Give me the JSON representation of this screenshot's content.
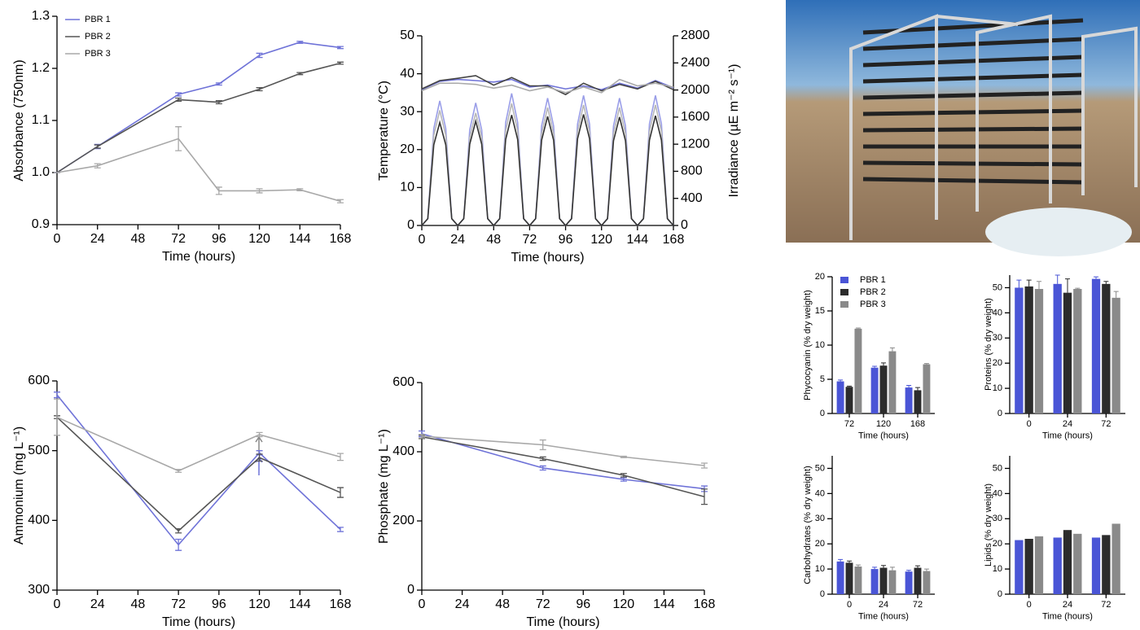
{
  "chart_data": [
    {
      "type": "line",
      "xlabel": "Time (hours)",
      "ylabel": "Absorbance (750nm)",
      "legend": "upper left",
      "x": [
        0,
        24,
        72,
        96,
        120,
        144,
        168
      ],
      "xlim": [
        0,
        168
      ],
      "xticks": [
        0,
        24,
        48,
        72,
        96,
        120,
        144,
        168
      ],
      "ylim": [
        0.9,
        1.3
      ],
      "yticks": [
        0.9,
        {
          "value": 1,
          "label": "1.0"
        },
        1.1,
        1.2,
        1.3
      ],
      "series": [
        {
          "name": "PBR 1",
          "color": "#6f73d8",
          "values": [
            1.0,
            1.05,
            1.15,
            1.17,
            1.225,
            1.25,
            1.24
          ],
          "errors": [
            0,
            0.004,
            0.003,
            0.002,
            0.004,
            0.002,
            0.002
          ]
        },
        {
          "name": "PBR 2",
          "color": "#555555",
          "values": [
            1.0,
            1.05,
            1.14,
            1.135,
            1.16,
            1.19,
            1.21
          ],
          "errors": [
            0,
            0.003,
            0.003,
            0.003,
            0.003,
            0.002,
            0.002
          ]
        },
        {
          "name": "PBR 3",
          "color": "#a8a8a8",
          "values": [
            1.0,
            1.013,
            1.065,
            0.965,
            0.965,
            0.967,
            0.945
          ],
          "errors": [
            0,
            0.004,
            0.023,
            0.007,
            0.004,
            0.002,
            0.003
          ]
        }
      ]
    },
    {
      "type": "line",
      "xlabel": "Time (hours)",
      "ylabel": "Temperature (°C)",
      "y2label": "Irradiance (µE m⁻² s⁻¹)",
      "x": [
        0,
        4,
        8,
        12,
        16,
        20,
        24,
        28,
        32,
        36,
        40,
        44,
        48,
        52,
        56,
        60,
        64,
        68,
        72,
        76,
        80,
        84,
        88,
        92,
        96,
        100,
        104,
        108,
        112,
        116,
        120,
        124,
        128,
        132,
        136,
        140,
        144,
        148,
        152,
        156,
        160,
        164,
        168
      ],
      "xlim": [
        0,
        168
      ],
      "xticks": [
        0,
        24,
        48,
        72,
        96,
        120,
        144,
        168
      ],
      "ylim": [
        0,
        50
      ],
      "yticks": [
        0,
        10,
        20,
        30,
        40,
        50
      ],
      "y2lim": [
        0,
        2800
      ],
      "y2ticks": [
        0,
        400,
        800,
        1200,
        1600,
        2000,
        2400,
        2800
      ],
      "series": [
        {
          "color": "#6f73d8",
          "x": [
            0,
            12,
            24,
            36,
            48,
            60,
            72,
            84,
            96,
            108,
            120,
            132,
            144,
            156,
            168
          ],
          "values": [
            35.8,
            38,
            38.5,
            38.2,
            37.8,
            38.5,
            36.5,
            37,
            36,
            36.8,
            35.8,
            37.5,
            36.2,
            38.2,
            36.3
          ]
        },
        {
          "color": "#444444",
          "x": [
            0,
            12,
            24,
            36,
            48,
            60,
            72,
            84,
            96,
            108,
            120,
            132,
            144,
            156,
            168
          ],
          "values": [
            36,
            38.2,
            38.8,
            39.5,
            37,
            39,
            36.8,
            36.8,
            34.5,
            37.5,
            35.5,
            37.2,
            36,
            38,
            35.8
          ]
        },
        {
          "color": "#aaaaaa",
          "x": [
            0,
            12,
            24,
            36,
            48,
            60,
            72,
            84,
            96,
            108,
            120,
            132,
            144,
            156,
            168
          ],
          "values": [
            35.5,
            37.5,
            37.5,
            37.2,
            36.2,
            37,
            35.5,
            36.5,
            35,
            36.5,
            35,
            38.5,
            36.8,
            37.5,
            36.5
          ]
        },
        {
          "color": "#9a9ee8",
          "axis": "y2",
          "values": [
            0,
            100,
            1430,
            1840,
            1430,
            100,
            0,
            100,
            1410,
            1810,
            1410,
            100,
            0,
            100,
            1520,
            1950,
            1520,
            100,
            0,
            100,
            1470,
            1880,
            1470,
            100,
            0,
            100,
            1500,
            1920,
            1500,
            100,
            0,
            100,
            1470,
            1880,
            1470,
            100,
            0,
            100,
            1500,
            1920,
            1500,
            100,
            0
          ]
        },
        {
          "color": "#b8b8b8",
          "axis": "y2",
          "values": [
            0,
            100,
            1330,
            1700,
            1330,
            100,
            0,
            100,
            1300,
            1660,
            1300,
            100,
            0,
            100,
            1400,
            1800,
            1400,
            100,
            0,
            100,
            1360,
            1740,
            1360,
            100,
            0,
            100,
            1390,
            1780,
            1390,
            100,
            0,
            100,
            1360,
            1740,
            1360,
            100,
            0,
            100,
            1390,
            1780,
            1390,
            100,
            0
          ]
        },
        {
          "color": "#333333",
          "axis": "y2",
          "values": [
            0,
            100,
            1190,
            1520,
            1190,
            100,
            0,
            100,
            1200,
            1540,
            1200,
            100,
            0,
            100,
            1270,
            1630,
            1270,
            100,
            0,
            100,
            1260,
            1610,
            1260,
            100,
            0,
            100,
            1280,
            1640,
            1280,
            100,
            0,
            100,
            1250,
            1600,
            1250,
            100,
            0,
            100,
            1260,
            1620,
            1260,
            100,
            0
          ]
        }
      ]
    },
    {
      "type": "line",
      "xlabel": "Time (hours)",
      "ylabel": "Ammonium (mg L⁻¹)",
      "x": [
        0,
        72,
        120,
        168
      ],
      "xlim": [
        0,
        168
      ],
      "xticks": [
        0,
        24,
        48,
        72,
        96,
        120,
        144,
        168
      ],
      "ylim": [
        300,
        600
      ],
      "yticks": [
        300,
        400,
        500,
        600
      ],
      "series": [
        {
          "color": "#6f73d8",
          "values": [
            580,
            365,
            497,
            387
          ],
          "errors": [
            4,
            8,
            3,
            3
          ]
        },
        {
          "color": "#555555",
          "values": [
            548,
            385,
            490,
            440
          ],
          "errors": [
            2,
            3,
            5,
            7
          ]
        },
        {
          "color": "#a8a8a8",
          "values": [
            548,
            471,
            523,
            491
          ],
          "errors": [
            26,
            2,
            3,
            5
          ]
        }
      ]
    },
    {
      "type": "line",
      "xlabel": "Time (hours)",
      "ylabel": "Phosphate (mg L⁻¹)",
      "x": [
        0,
        72,
        120,
        168
      ],
      "xlim": [
        0,
        168
      ],
      "xticks": [
        0,
        24,
        48,
        72,
        96,
        120,
        144,
        168
      ],
      "ylim": [
        0,
        600
      ],
      "yticks": [
        0,
        200,
        400,
        600
      ],
      "series": [
        {
          "color": "#6f73d8",
          "values": [
            452,
            353,
            320,
            293
          ],
          "errors": [
            8,
            6,
            5,
            8
          ]
        },
        {
          "color": "#555555",
          "values": [
            443,
            380,
            332,
            270
          ],
          "errors": [
            5,
            5,
            5,
            22
          ]
        },
        {
          "color": "#a8a8a8",
          "values": [
            445,
            420,
            385,
            360
          ],
          "errors": [
            5,
            14,
            2,
            7
          ]
        }
      ]
    },
    {
      "type": "bar",
      "xlabel": "Time (hours)",
      "ylabel": "Phycocyanin (% dry weight)",
      "legend": "upper left",
      "categories": [
        "72",
        "120",
        "168"
      ],
      "ylim": [
        0,
        20
      ],
      "yticks": [
        0,
        5,
        10,
        15,
        20
      ],
      "series": [
        {
          "name": "PBR 1",
          "color": "#4a55d6",
          "values": [
            4.7,
            6.7,
            3.8
          ],
          "errors": [
            0.2,
            0.2,
            0.3
          ]
        },
        {
          "name": "PBR 2",
          "color": "#2c2c2c",
          "values": [
            3.9,
            7,
            3.4
          ],
          "errors": [
            0.1,
            0.4,
            0.4
          ]
        },
        {
          "name": "PBR 3",
          "color": "#8a8a8a",
          "values": [
            12.4,
            9.1,
            7.2
          ],
          "errors": [
            0.1,
            0.5,
            0.1
          ]
        }
      ]
    },
    {
      "type": "bar",
      "xlabel": "Time (hours)",
      "ylabel": "Proteins (% dry weight)",
      "categories": [
        "0",
        "24",
        "72"
      ],
      "ylim": [
        0,
        55
      ],
      "yticks": [
        0,
        10,
        20,
        30,
        40,
        50
      ],
      "series": [
        {
          "color": "#4a55d6",
          "values": [
            50,
            51.5,
            53.5
          ],
          "errors": [
            3,
            3.5,
            0.8
          ]
        },
        {
          "color": "#2c2c2c",
          "values": [
            50.5,
            48,
            51.5
          ],
          "errors": [
            2.5,
            5.5,
            1
          ]
        },
        {
          "color": "#8a8a8a",
          "values": [
            49.5,
            49.5,
            46
          ],
          "errors": [
            3,
            0.3,
            2.5
          ]
        }
      ]
    },
    {
      "type": "bar",
      "xlabel": "Time (hours)",
      "ylabel": "Carbohydrates (% dry weight)",
      "categories": [
        "0",
        "24",
        "72"
      ],
      "ylim": [
        0,
        55
      ],
      "yticks": [
        0,
        10,
        20,
        30,
        40,
        50
      ],
      "series": [
        {
          "color": "#4a55d6",
          "values": [
            13,
            10,
            9
          ],
          "errors": [
            0.8,
            0.7,
            0.5
          ]
        },
        {
          "color": "#2c2c2c",
          "values": [
            12.5,
            10.5,
            10.5
          ],
          "errors": [
            0.7,
            0.9,
            0.8
          ]
        },
        {
          "color": "#8a8a8a",
          "values": [
            11,
            9.5,
            9.2
          ],
          "errors": [
            0.6,
            1.2,
            0.8
          ]
        }
      ]
    },
    {
      "type": "bar",
      "xlabel": "Time (hours)",
      "ylabel": "Lipids (% dry weight)",
      "categories": [
        "0",
        "24",
        "72"
      ],
      "ylim": [
        0,
        55
      ],
      "yticks": [
        0,
        10,
        20,
        30,
        40,
        50
      ],
      "series": [
        {
          "color": "#4a55d6",
          "values": [
            21.5,
            22.5,
            22.5
          ]
        },
        {
          "color": "#2c2c2c",
          "values": [
            22,
            25.5,
            23.5
          ]
        },
        {
          "color": "#8a8a8a",
          "values": [
            23,
            24,
            28
          ]
        }
      ]
    }
  ]
}
